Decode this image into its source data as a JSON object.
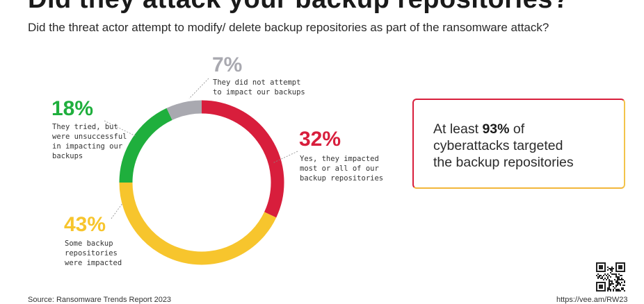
{
  "title": "Did they attack your backup repositories?",
  "subtitle": "Did the threat actor attempt to modify/ delete backup repositories as part of the ransomware attack?",
  "colors": {
    "red": "#d81e3c",
    "yellow": "#f7c52d",
    "green": "#1faf3d",
    "gray": "#a9a9b0"
  },
  "chart_data": {
    "type": "pie",
    "variant": "donut",
    "slices": [
      {
        "label": "Yes, they impacted most or all of our backup repositories",
        "value": 32,
        "display": "32%",
        "color": "#d81e3c"
      },
      {
        "label": "Some backup repositories were impacted",
        "value": 43,
        "display": "43%",
        "color": "#f7c52d"
      },
      {
        "label": "They tried, but were unsuccessful in impacting our backups",
        "value": 18,
        "display": "18%",
        "color": "#1faf3d"
      },
      {
        "label": "They did not attempt to impact our backups",
        "value": 7,
        "display": "7%",
        "color": "#a9a9b0"
      }
    ]
  },
  "labels": {
    "red": {
      "pct": "32%",
      "lines": [
        "Yes, they impacted",
        "most or all of our",
        "backup repositories"
      ]
    },
    "yellow": {
      "pct": "43%",
      "lines": [
        "Some backup",
        "repositories",
        "were impacted"
      ]
    },
    "green": {
      "pct": "18%",
      "lines": [
        "They tried, but",
        "were unsuccessful",
        "in impacting our",
        "backups"
      ]
    },
    "gray": {
      "pct": "7%",
      "lines": [
        "They did not attempt",
        "to impact our backups"
      ]
    }
  },
  "callout": {
    "prefix": "At least ",
    "highlight": "93%",
    "suffix": " of",
    "line2": "cyberattacks targeted",
    "line3": "the backup repositories"
  },
  "footer": {
    "source": "Source: Ransomware Trends Report 2023",
    "url": "https://vee.am/RW23"
  }
}
